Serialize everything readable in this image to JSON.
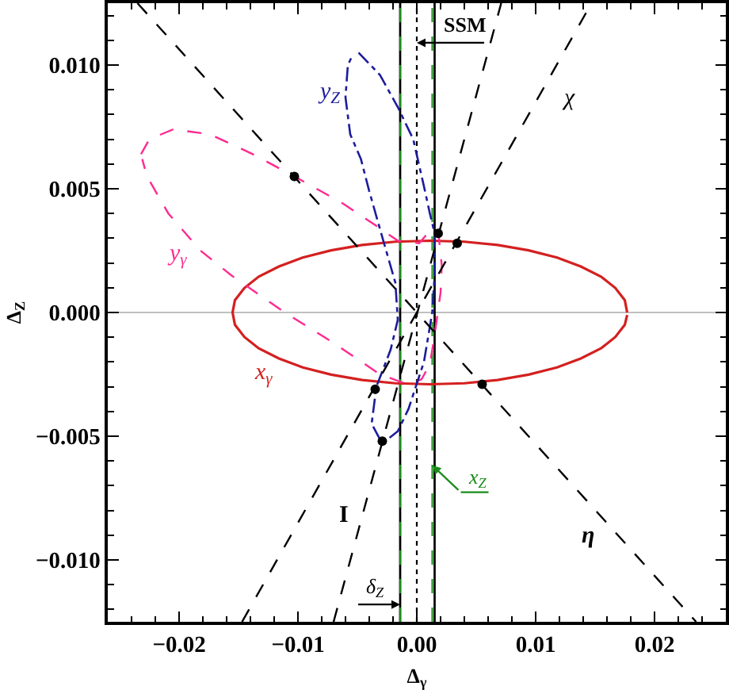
{
  "chart_data": {
    "type": "line",
    "xlabel": "Δ$_{γ}$",
    "ylabel": "Δ$_{Z}$",
    "xlim": [
      -0.026,
      0.026
    ],
    "ylim": [
      -0.0125,
      0.0125
    ],
    "xticks": [
      {
        "value": -0.024,
        "label": null
      },
      {
        "value": -0.022,
        "label": null
      },
      {
        "value": -0.02,
        "label": "−0.02"
      },
      {
        "value": -0.018,
        "label": null
      },
      {
        "value": -0.016,
        "label": null
      },
      {
        "value": -0.014,
        "label": null
      },
      {
        "value": -0.012,
        "label": null
      },
      {
        "value": -0.01,
        "label": "−0.01"
      },
      {
        "value": -0.008,
        "label": null
      },
      {
        "value": -0.006,
        "label": null
      },
      {
        "value": -0.004,
        "label": null
      },
      {
        "value": -0.002,
        "label": null
      },
      {
        "value": 0,
        "label": "0.00"
      },
      {
        "value": 0.002,
        "label": null
      },
      {
        "value": 0.004,
        "label": null
      },
      {
        "value": 0.006,
        "label": null
      },
      {
        "value": 0.008,
        "label": null
      },
      {
        "value": 0.01,
        "label": "0.01"
      },
      {
        "value": 0.012,
        "label": null
      },
      {
        "value": 0.014,
        "label": null
      },
      {
        "value": 0.016,
        "label": null
      },
      {
        "value": 0.018,
        "label": null
      },
      {
        "value": 0.02,
        "label": "0.02"
      },
      {
        "value": 0.022,
        "label": null
      },
      {
        "value": 0.024,
        "label": null
      }
    ],
    "yticks": [
      {
        "value": -0.012,
        "label": null
      },
      {
        "value": -0.011,
        "label": null
      },
      {
        "value": -0.01,
        "label": "−0.010"
      },
      {
        "value": -0.009,
        "label": null
      },
      {
        "value": -0.008,
        "label": null
      },
      {
        "value": -0.007,
        "label": null
      },
      {
        "value": -0.006,
        "label": null
      },
      {
        "value": -0.005,
        "label": "−0.005"
      },
      {
        "value": -0.004,
        "label": null
      },
      {
        "value": -0.003,
        "label": null
      },
      {
        "value": -0.002,
        "label": null
      },
      {
        "value": -0.001,
        "label": null
      },
      {
        "value": 0,
        "label": "0.000"
      },
      {
        "value": 0.001,
        "label": null
      },
      {
        "value": 0.002,
        "label": null
      },
      {
        "value": 0.003,
        "label": null
      },
      {
        "value": 0.004,
        "label": null
      },
      {
        "value": 0.005,
        "label": "0.005"
      },
      {
        "value": 0.006,
        "label": null
      },
      {
        "value": 0.007,
        "label": null
      },
      {
        "value": 0.008,
        "label": null
      },
      {
        "value": 0.009,
        "label": null
      },
      {
        "value": 0.01,
        "label": "0.010"
      },
      {
        "value": 0.011,
        "label": null
      },
      {
        "value": 0.012,
        "label": null
      }
    ],
    "ref_lines": [
      {
        "axis": "y",
        "value": 0,
        "color": "#c0c0c0",
        "line_style": "solid"
      },
      {
        "axis": "x",
        "value": -0.0014,
        "label": "δ$_{Z}$",
        "color": "#000000",
        "line_style": "solid"
      },
      {
        "axis": "x",
        "value": 0.0015,
        "color": "#000000",
        "line_style": "solid"
      },
      {
        "axis": "x",
        "value": 0,
        "label": "SSM",
        "color": "#000000",
        "line_style": "dotted"
      },
      {
        "axis": "x",
        "value": -0.0014,
        "color": "#1a8c1a",
        "line_style": "dashed"
      },
      {
        "axis": "x",
        "value": 0.0013,
        "label": "x$_{Z}$",
        "color": "#1a8c1a",
        "line_style": "dashed"
      }
    ],
    "series": [
      {
        "name": "x$_{γ}$",
        "color": "#d42020",
        "line_style": "solid",
        "x": [
          0.0177,
          0.0175,
          0.0167,
          0.0155,
          0.0138,
          0.0118,
          0.0094,
          0.0068,
          0.004,
          0.0011,
          -0.0018,
          -0.0046,
          -0.0072,
          -0.0096,
          -0.0116,
          -0.0133,
          -0.0145,
          -0.0153,
          -0.0155,
          -0.0153,
          -0.0145,
          -0.0133,
          -0.0116,
          -0.0096,
          -0.0072,
          -0.0046,
          -0.0018,
          0.0011,
          0.004,
          0.0068,
          0.0094,
          0.0118,
          0.0138,
          0.0155,
          0.0167,
          0.0175,
          0.0177
        ],
        "values": [
          0,
          0.0005,
          0.00099,
          0.00145,
          0.00186,
          0.00222,
          0.00251,
          0.00273,
          0.00286,
          0.0029,
          0.00286,
          0.00273,
          0.00251,
          0.00222,
          0.00186,
          0.00145,
          0.00099,
          0.0005,
          0,
          -0.0005,
          -0.00099,
          -0.00145,
          -0.00186,
          -0.00222,
          -0.00251,
          -0.00273,
          -0.00286,
          -0.0029,
          -0.00286,
          -0.00273,
          -0.00251,
          -0.00222,
          -0.00186,
          -0.00145,
          -0.00099,
          -0.0005,
          -0.0001
        ]
      },
      {
        "name": "y$_{γ}$",
        "color": "#ff2a8f",
        "line_style": "dashed",
        "x": [
          -0.0232,
          -0.0225,
          -0.0205,
          -0.0174,
          -0.0138,
          -0.0103,
          -0.0062,
          -0.0034,
          -0.0016,
          0.0002,
          0.0011,
          0.0018,
          0.0021,
          0.002,
          0.0015,
          0.0011,
          0.0004,
          -0.0007,
          -0.0014,
          -0.0031,
          -0.0071,
          -0.0111,
          -0.0138,
          -0.0156,
          -0.0182,
          -0.0209,
          -0.0227,
          -0.0231
        ],
        "values": [
          0.0064,
          0.007,
          0.0074,
          0.0072,
          0.0064,
          0.0055,
          0.0044,
          0.0035,
          0.0029,
          0.0028,
          0.0033,
          0.0033,
          0.0019,
          0.0008,
          -0.0009,
          -0.0021,
          -0.0027,
          -0.0029,
          -0.0028,
          -0.0025,
          -0.0012,
          0.0,
          0.0009,
          0.0015,
          0.0025,
          0.004,
          0.0055,
          0.0062
        ]
      },
      {
        "name": "y$_{Z}$",
        "color": "#1c1c9c",
        "line_style": "dashdot",
        "x": [
          -0.0049,
          -0.0031,
          -0.0016,
          -0.0003,
          0.0006,
          0.0011,
          0.0015,
          0.0015,
          0.0013,
          0.0006,
          -0.0007,
          -0.0016,
          -0.0029,
          -0.0038,
          -0.0034,
          -0.0022,
          -0.0016,
          -0.0018,
          -0.0027,
          -0.004,
          -0.0047,
          -0.0056,
          -0.006,
          -0.0058,
          -0.0054
        ],
        "values": [
          0.0105,
          0.0096,
          0.0083,
          0.007,
          0.0051,
          0.004,
          0.0032,
          0.0015,
          0.0,
          -0.002,
          -0.0039,
          -0.0048,
          -0.0053,
          -0.0045,
          -0.003,
          -0.0015,
          -0.0003,
          0.0012,
          0.0027,
          0.0049,
          0.0062,
          0.0072,
          0.0087,
          0.01,
          0.0104
        ]
      },
      {
        "name": "χ",
        "color": "#000000",
        "line_style": "dashed",
        "x": [
          -0.0147,
          0.0147
        ],
        "values": [
          -0.0125,
          0.0125
        ]
      },
      {
        "name": "I",
        "color": "#000000",
        "line_style": "dashed",
        "x": [
          -0.007,
          0.0071
        ],
        "values": [
          -0.0125,
          0.0125
        ]
      },
      {
        "name": "η",
        "color": "#000000",
        "line_style": "dashed",
        "x": [
          -0.0235,
          0.0235
        ],
        "values": [
          0.0125,
          -0.0125
        ]
      },
      {
        "type": "scatter",
        "color": "#000000",
        "marker": "circle",
        "x": [
          -0.0103,
          0.0018,
          0.0034,
          -0.0035,
          -0.0029,
          0.0055
        ],
        "values": [
          0.0055,
          0.0032,
          0.0028,
          -0.0031,
          -0.0052,
          -0.0029
        ]
      }
    ]
  }
}
